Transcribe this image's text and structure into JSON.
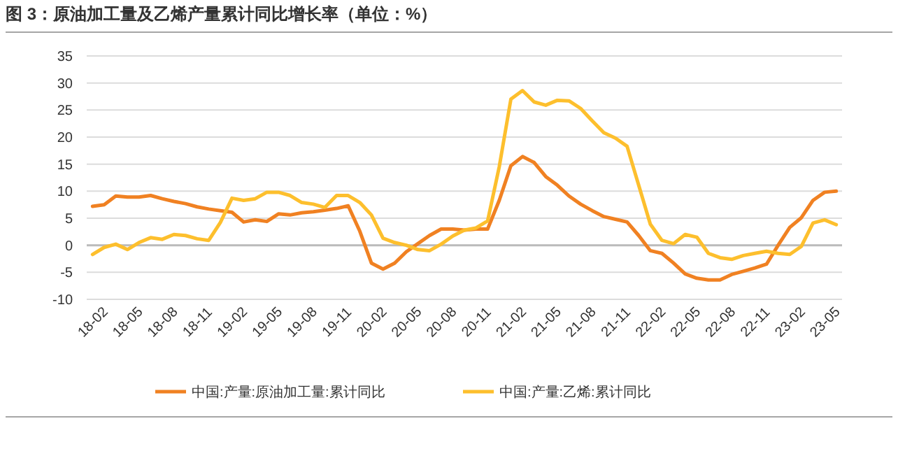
{
  "chart_data": {
    "type": "line",
    "title": "图 3：原油加工量及乙烯产量累计同比增长率（单位：%）",
    "categories": [
      "18-02",
      null,
      null,
      "18-05",
      null,
      null,
      "18-08",
      null,
      null,
      "18-11",
      null,
      null,
      "19-02",
      null,
      null,
      "19-05",
      null,
      null,
      "19-08",
      null,
      null,
      "19-11",
      null,
      null,
      "20-02",
      null,
      null,
      "20-05",
      null,
      null,
      "20-08",
      null,
      null,
      "20-11",
      null,
      null,
      "21-02",
      null,
      null,
      "21-05",
      null,
      null,
      "21-08",
      null,
      null,
      "21-11",
      null,
      null,
      "22-02",
      null,
      null,
      "22-05",
      null,
      null,
      "22-08",
      null,
      null,
      "22-11",
      null,
      null,
      "23-02",
      null,
      null,
      "23-05",
      null
    ],
    "series": [
      {
        "name": "中国:产量:原油加工量:累计同比",
        "color": "#f08122",
        "values": [
          7.2,
          7.5,
          9.1,
          8.9,
          8.9,
          9.2,
          8.6,
          8.1,
          7.7,
          7.1,
          6.7,
          6.4,
          6.1,
          4.3,
          4.7,
          4.4,
          5.8,
          5.6,
          6.0,
          6.2,
          6.5,
          6.8,
          7.3,
          2.6,
          -3.3,
          -4.4,
          -3.3,
          -1.2,
          0.3,
          1.8,
          3.0,
          3.0,
          2.8,
          3.0,
          3.0,
          8.3,
          14.7,
          16.4,
          15.3,
          12.7,
          11.1,
          9.1,
          7.6,
          6.4,
          5.3,
          4.8,
          4.3,
          1.8,
          -1.0,
          -1.5,
          -3.3,
          -5.3,
          -6.1,
          -6.4,
          -6.4,
          -5.4,
          -4.8,
          -4.2,
          -3.5,
          0,
          3.3,
          5.1,
          8.3,
          9.8,
          10.0
        ]
      },
      {
        "name": "中国:产量:乙烯:累计同比",
        "color": "#fdbf2d",
        "values": [
          -1.7,
          -0.4,
          0.2,
          -0.8,
          0.5,
          1.4,
          1.1,
          2.0,
          1.8,
          1.2,
          0.9,
          4.2,
          8.7,
          8.3,
          8.6,
          9.8,
          9.8,
          9.2,
          7.9,
          7.6,
          7.0,
          9.2,
          9.2,
          7.9,
          5.6,
          1.3,
          0.5,
          0,
          -0.8,
          -1.0,
          0.2,
          1.7,
          2.8,
          3.2,
          4.5,
          14.5,
          27.0,
          28.6,
          26.5,
          25.9,
          26.8,
          26.7,
          25.3,
          23.0,
          20.8,
          19.8,
          18.3,
          11.1,
          3.9,
          0.9,
          0.3,
          2.0,
          1.5,
          -1.5,
          -2.3,
          -2.6,
          -1.9,
          -1.5,
          -1.1,
          -1.5,
          -1.7,
          -0.2,
          4.1,
          4.7,
          3.8
        ]
      }
    ],
    "ylim": [
      -10,
      35
    ],
    "yticks": [
      -10,
      -5,
      0,
      5,
      10,
      15,
      20,
      25,
      30,
      35
    ],
    "grid": "y",
    "legend": "bottom"
  }
}
